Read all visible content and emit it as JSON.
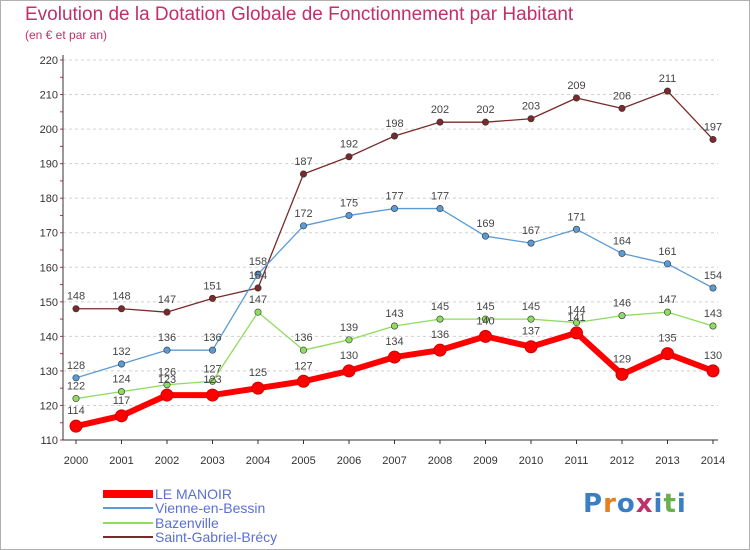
{
  "chart_data": {
    "type": "line",
    "title": "Evolution de la Dotation Globale de Fonctionnement par Habitant",
    "subtitle": "(en € et par an)",
    "x": [
      "2000",
      "2001",
      "2002",
      "2003",
      "2004",
      "2005",
      "2006",
      "2007",
      "2008",
      "2009",
      "2010",
      "2011",
      "2012",
      "2013",
      "2014"
    ],
    "yticks": [
      "110",
      "120",
      "130",
      "140",
      "150",
      "160",
      "170",
      "180",
      "190",
      "200",
      "210",
      "220"
    ],
    "ylim": [
      110,
      220
    ],
    "grid": "horizontal-dashed",
    "legend_position": "bottom-left",
    "series": [
      {
        "name": "LE MANOIR",
        "color": "#ff0000",
        "values": [
          114,
          117,
          123,
          123,
          125,
          127,
          130,
          134,
          136,
          140,
          137,
          141,
          129,
          135,
          130
        ]
      },
      {
        "name": "Vienne-en-Bessin",
        "color": "#5b9bd5",
        "values": [
          128,
          132,
          136,
          136,
          158,
          172,
          175,
          177,
          177,
          169,
          167,
          171,
          164,
          161,
          154
        ]
      },
      {
        "name": "Bazenville",
        "color": "#8fdc5f",
        "values": [
          122,
          124,
          126,
          127,
          147,
          136,
          139,
          143,
          145,
          145,
          145,
          144,
          146,
          147,
          143
        ]
      },
      {
        "name": "Saint-Gabriel-Brécy",
        "color": "#7a2a2a",
        "values": [
          148,
          148,
          147,
          151,
          154,
          187,
          192,
          198,
          202,
          202,
          203,
          209,
          206,
          211,
          197
        ]
      }
    ]
  },
  "logo": {
    "letters": [
      "P",
      "r",
      "o",
      "x",
      "i",
      "t",
      "i"
    ],
    "colors": [
      "#3a7fc4",
      "#e67e22",
      "#3a7fc4",
      "#c0306a",
      "#3a7fc4",
      "#6ab04c",
      "#3a7fc4"
    ]
  }
}
